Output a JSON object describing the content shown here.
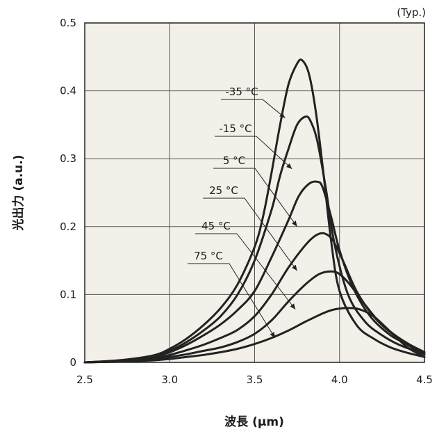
{
  "chart_data": {
    "type": "line",
    "note": "(Typ.)",
    "xlabel": "波長 (μm)",
    "ylabel": "光出力 (a.u.)",
    "xlim": [
      2.5,
      4.5
    ],
    "ylim": [
      0,
      0.5
    ],
    "x_ticks": [
      "2.5",
      "3.0",
      "3.5",
      "4.0",
      "4.5"
    ],
    "x_tick_values": [
      2.5,
      3.0,
      3.5,
      4.0,
      4.5
    ],
    "y_ticks": [
      "0",
      "0.1",
      "0.2",
      "0.3",
      "0.4",
      "0.5"
    ],
    "y_tick_values": [
      0,
      0.1,
      0.2,
      0.3,
      0.4,
      0.5
    ],
    "grid": true,
    "plot_background": "#f2f0e8",
    "line_color": "#222222",
    "series": [
      {
        "name": "-35 °C",
        "label_anchor": [
          3.68,
          0.36
        ],
        "x": [
          2.5,
          2.7,
          2.9,
          3.0,
          3.1,
          3.2,
          3.3,
          3.4,
          3.5,
          3.55,
          3.6,
          3.65,
          3.7,
          3.75,
          3.78,
          3.82,
          3.86,
          3.9,
          3.95,
          4.0,
          4.1,
          4.2,
          4.3,
          4.4,
          4.5
        ],
        "y": [
          0.0,
          0.003,
          0.01,
          0.02,
          0.035,
          0.055,
          0.08,
          0.115,
          0.17,
          0.215,
          0.28,
          0.35,
          0.41,
          0.44,
          0.445,
          0.425,
          0.37,
          0.29,
          0.18,
          0.105,
          0.055,
          0.035,
          0.022,
          0.014,
          0.008
        ]
      },
      {
        "name": "-15 °C",
        "label_anchor": [
          3.72,
          0.285
        ],
        "x": [
          2.5,
          2.7,
          2.9,
          3.0,
          3.1,
          3.2,
          3.3,
          3.4,
          3.5,
          3.6,
          3.65,
          3.7,
          3.75,
          3.8,
          3.83,
          3.87,
          3.92,
          3.97,
          4.05,
          4.15,
          4.25,
          4.35,
          4.5
        ],
        "y": [
          0.0,
          0.003,
          0.009,
          0.017,
          0.03,
          0.047,
          0.068,
          0.1,
          0.15,
          0.225,
          0.275,
          0.315,
          0.35,
          0.362,
          0.355,
          0.325,
          0.255,
          0.175,
          0.1,
          0.06,
          0.04,
          0.026,
          0.012
        ]
      },
      {
        "name": "5 °C",
        "label_anchor": [
          3.75,
          0.2
        ],
        "x": [
          2.5,
          2.7,
          2.9,
          3.0,
          3.1,
          3.2,
          3.3,
          3.4,
          3.5,
          3.6,
          3.7,
          3.76,
          3.82,
          3.87,
          3.9,
          3.95,
          4.0,
          4.08,
          4.18,
          4.3,
          4.4,
          4.5
        ],
        "y": [
          0.0,
          0.002,
          0.008,
          0.015,
          0.026,
          0.04,
          0.056,
          0.077,
          0.105,
          0.155,
          0.21,
          0.245,
          0.263,
          0.266,
          0.258,
          0.215,
          0.165,
          0.11,
          0.068,
          0.04,
          0.027,
          0.015
        ]
      },
      {
        "name": "25 °C",
        "label_anchor": [
          3.75,
          0.135
        ],
        "x": [
          2.5,
          2.7,
          2.9,
          3.0,
          3.1,
          3.2,
          3.3,
          3.4,
          3.5,
          3.6,
          3.7,
          3.8,
          3.86,
          3.91,
          3.96,
          4.02,
          4.1,
          4.2,
          4.3,
          4.4,
          4.5
        ],
        "y": [
          0.0,
          0.002,
          0.006,
          0.011,
          0.018,
          0.026,
          0.036,
          0.048,
          0.068,
          0.1,
          0.14,
          0.173,
          0.187,
          0.19,
          0.18,
          0.15,
          0.105,
          0.068,
          0.045,
          0.028,
          0.015
        ]
      },
      {
        "name": "45 °C",
        "label_anchor": [
          3.74,
          0.078
        ],
        "x": [
          2.5,
          2.7,
          2.9,
          3.0,
          3.1,
          3.2,
          3.3,
          3.4,
          3.5,
          3.6,
          3.7,
          3.8,
          3.88,
          3.95,
          4.0,
          4.06,
          4.15,
          4.25,
          4.35,
          4.45,
          4.5
        ],
        "y": [
          0.0,
          0.002,
          0.005,
          0.008,
          0.012,
          0.017,
          0.022,
          0.03,
          0.042,
          0.062,
          0.09,
          0.115,
          0.13,
          0.134,
          0.13,
          0.115,
          0.085,
          0.055,
          0.035,
          0.018,
          0.012
        ]
      },
      {
        "name": "75 °C",
        "label_anchor": [
          3.62,
          0.036
        ],
        "x": [
          2.5,
          2.7,
          2.9,
          3.0,
          3.1,
          3.2,
          3.3,
          3.4,
          3.5,
          3.6,
          3.7,
          3.8,
          3.9,
          3.97,
          4.05,
          4.12,
          4.2,
          4.3,
          4.4,
          4.5
        ],
        "y": [
          0.0,
          0.001,
          0.003,
          0.005,
          0.008,
          0.011,
          0.015,
          0.02,
          0.027,
          0.036,
          0.047,
          0.06,
          0.072,
          0.078,
          0.08,
          0.078,
          0.068,
          0.045,
          0.022,
          0.008
        ]
      }
    ]
  }
}
